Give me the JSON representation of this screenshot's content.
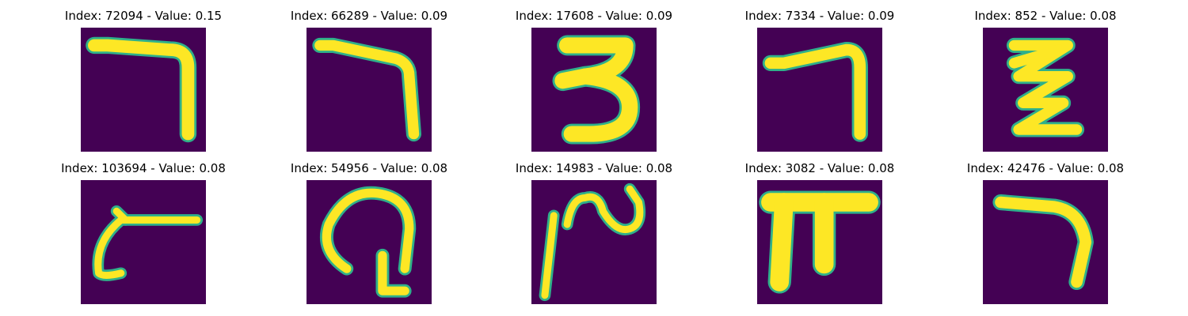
{
  "colors": {
    "background": "#440154",
    "stroke_edge": "#2fb08a",
    "stroke_core": "#fde725"
  },
  "panels": [
    {
      "title": "Index: 72094 - Value: 0.15",
      "index": 72094,
      "value": 0.15,
      "glyph": "seven-shape"
    },
    {
      "title": "Index: 66289 - Value: 0.09",
      "index": 66289,
      "value": 0.09,
      "glyph": "seven-shape"
    },
    {
      "title": "Index: 17608 - Value: 0.09",
      "index": 17608,
      "value": 0.09,
      "glyph": "three-shape"
    },
    {
      "title": "Index: 7334 - Value: 0.09",
      "index": 7334,
      "value": 0.09,
      "glyph": "seven-shape"
    },
    {
      "title": "Index: 852 - Value: 0.08",
      "index": 852,
      "value": 0.08,
      "glyph": "zigzag-shape"
    },
    {
      "title": "Index: 103694 - Value: 0.08",
      "index": 103694,
      "value": 0.08,
      "glyph": "hook-shape"
    },
    {
      "title": "Index: 54956 - Value: 0.08",
      "index": 54956,
      "value": 0.08,
      "glyph": "loop-shape"
    },
    {
      "title": "Index: 14983 - Value: 0.08",
      "index": 14983,
      "value": 0.08,
      "glyph": "squiggle-shape"
    },
    {
      "title": "Index: 3082 - Value: 0.08",
      "index": 3082,
      "value": 0.08,
      "glyph": "pi-shape"
    },
    {
      "title": "Index: 42476 - Value: 0.08",
      "index": 42476,
      "value": 0.08,
      "glyph": "seven-shape"
    }
  ]
}
